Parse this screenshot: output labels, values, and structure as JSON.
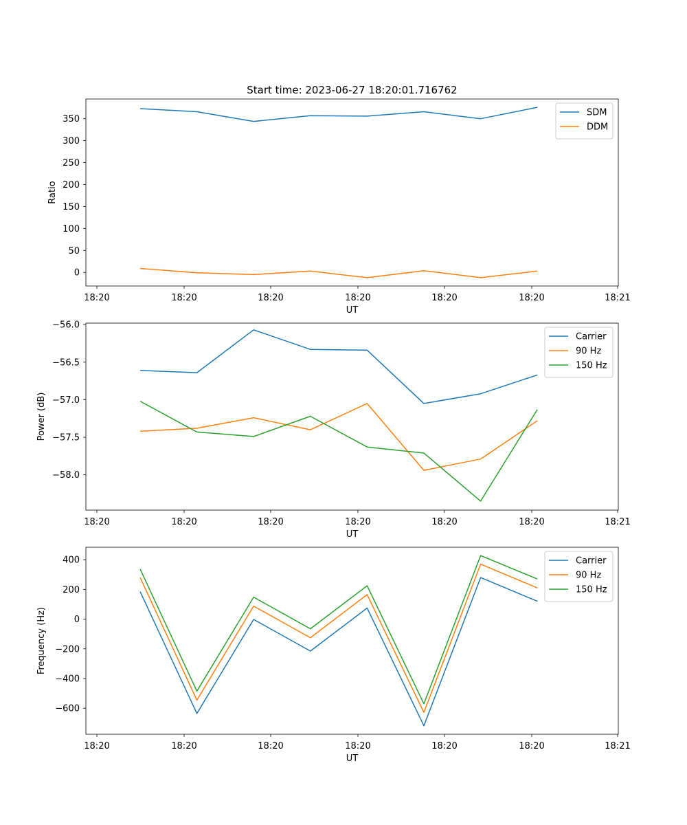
{
  "title": "Start time: 2023-06-27 18:20:01.716762",
  "colors": {
    "blue": "#1f77b4",
    "orange": "#ff7f0e",
    "green": "#2ca02c"
  },
  "chart_data": [
    {
      "type": "line",
      "title": "Start time: 2023-06-27 18:20:01.716762",
      "xlabel": "UT",
      "ylabel": "Ratio",
      "x": [
        1,
        2,
        3,
        4,
        5,
        6,
        7,
        8
      ],
      "x_tick_labels": [
        "18:20",
        "18:20",
        "18:20",
        "18:20",
        "18:20",
        "18:20",
        "18:21"
      ],
      "ylim": [
        -31,
        395
      ],
      "y_ticks": [
        0,
        50,
        100,
        150,
        200,
        250,
        300,
        350
      ],
      "legend_position": "top-right",
      "series": [
        {
          "name": "SDM",
          "color": "#1f77b4",
          "values": [
            373,
            366,
            344,
            357,
            356,
            366,
            350,
            376
          ]
        },
        {
          "name": "DDM",
          "color": "#ff7f0e",
          "values": [
            9,
            -1,
            -5,
            3,
            -12,
            4,
            -12,
            3
          ]
        }
      ]
    },
    {
      "type": "line",
      "xlabel": "UT",
      "ylabel": "Power (dB)",
      "x": [
        1,
        2,
        3,
        4,
        5,
        6,
        7,
        8
      ],
      "x_tick_labels": [
        "18:20",
        "18:20",
        "18:20",
        "18:20",
        "18:20",
        "18:20",
        "18:21"
      ],
      "ylim": [
        -58.47,
        -55.98
      ],
      "y_ticks": [
        -58.0,
        -57.5,
        -57.0,
        -56.5,
        -56.0
      ],
      "y_tick_labels": [
        "−58.0",
        "−57.5",
        "−57.0",
        "−56.5",
        "−56.0"
      ],
      "legend_position": "top-right",
      "series": [
        {
          "name": "Carrier",
          "color": "#1f77b4",
          "values": [
            -56.61,
            -56.64,
            -56.07,
            -56.33,
            -56.34,
            -57.05,
            -56.92,
            -56.67
          ]
        },
        {
          "name": "90 Hz",
          "color": "#ff7f0e",
          "values": [
            -57.42,
            -57.38,
            -57.24,
            -57.4,
            -57.05,
            -57.94,
            -57.79,
            -57.28
          ]
        },
        {
          "name": "150 Hz",
          "color": "#2ca02c",
          "values": [
            -57.02,
            -57.43,
            -57.49,
            -57.22,
            -57.63,
            -57.71,
            -58.35,
            -57.13
          ]
        }
      ]
    },
    {
      "type": "line",
      "xlabel": "UT",
      "ylabel": "Frequency (Hz)",
      "x": [
        1,
        2,
        3,
        4,
        5,
        6,
        7,
        8
      ],
      "x_tick_labels": [
        "18:20",
        "18:20",
        "18:20",
        "18:20",
        "18:20",
        "18:20",
        "18:21"
      ],
      "ylim": [
        -775,
        484
      ],
      "y_ticks": [
        -600,
        -400,
        -200,
        0,
        200,
        400
      ],
      "y_tick_labels": [
        "−600",
        "−400",
        "−200",
        "0",
        "200",
        "400"
      ],
      "legend_position": "top-right",
      "series": [
        {
          "name": "Carrier",
          "color": "#1f77b4",
          "values": [
            185,
            -635,
            -2,
            -215,
            75,
            -718,
            280,
            120
          ]
        },
        {
          "name": "90 Hz",
          "color": "#ff7f0e",
          "values": [
            280,
            -545,
            88,
            -125,
            165,
            -628,
            370,
            210
          ]
        },
        {
          "name": "150 Hz",
          "color": "#2ca02c",
          "values": [
            337,
            -485,
            148,
            -65,
            225,
            -570,
            428,
            270
          ]
        }
      ]
    }
  ]
}
